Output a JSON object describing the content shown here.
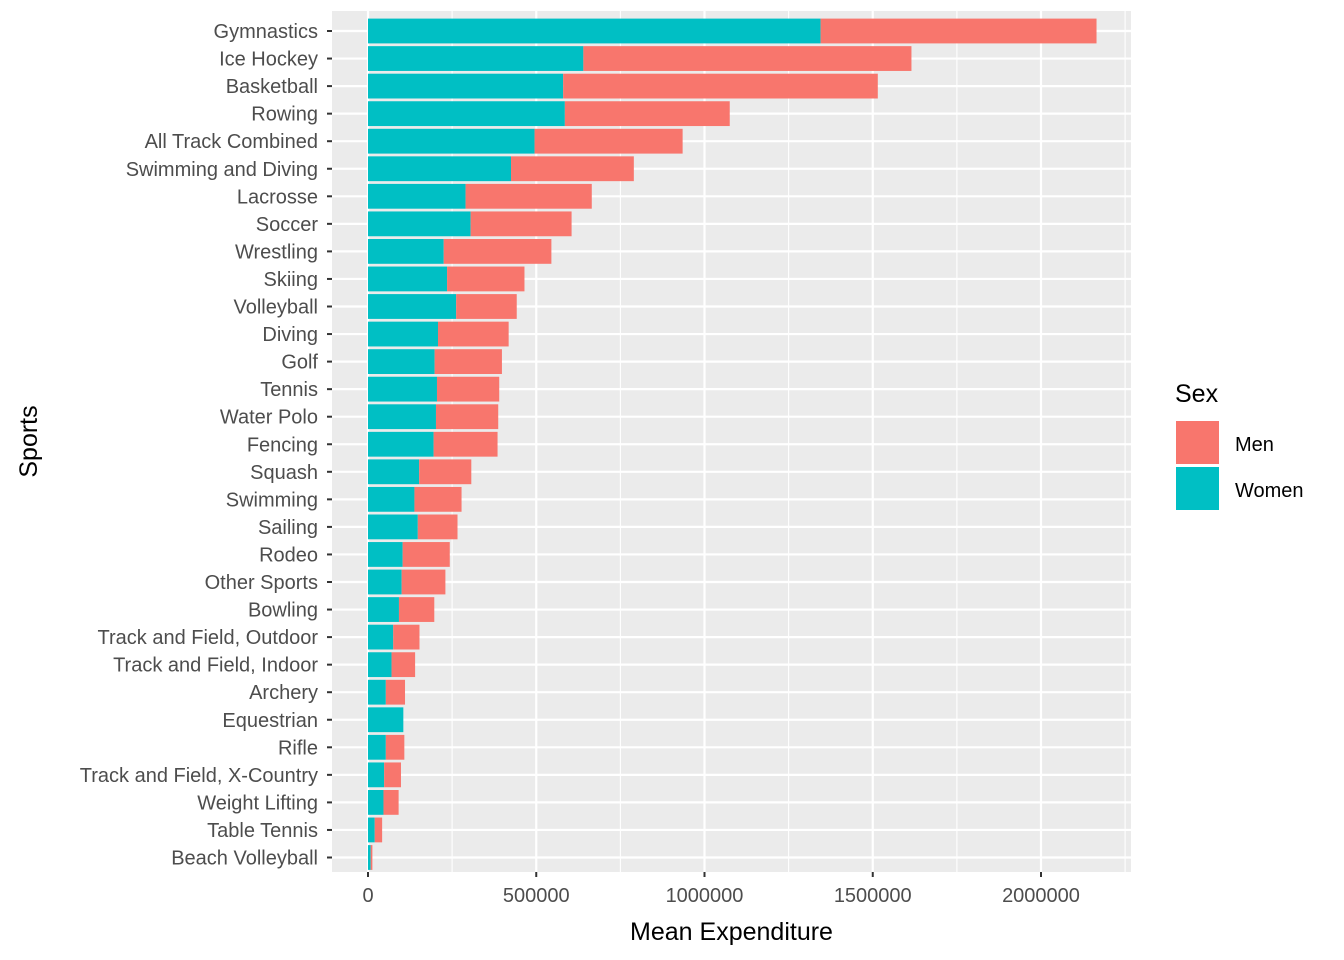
{
  "chart_data": {
    "type": "bar",
    "orientation": "horizontal",
    "stacked": true,
    "title": "",
    "xlabel": "Mean Expenditure",
    "ylabel": "Sports",
    "xlim": [
      0,
      2250000
    ],
    "x_ticks": [
      0,
      500000,
      1000000,
      1500000,
      2000000
    ],
    "x_tick_labels": [
      "0",
      "500000",
      "1000000",
      "1500000",
      "2000000"
    ],
    "grid": true,
    "legend": {
      "title": "Sex",
      "placement": "right"
    },
    "categories": [
      "Gymnastics",
      "Ice Hockey",
      "Basketball",
      "Rowing",
      "All Track Combined",
      "Swimming and Diving",
      "Lacrosse",
      "Soccer",
      "Wrestling",
      "Skiing",
      "Volleyball",
      "Diving",
      "Golf",
      "Tennis",
      "Water Polo",
      "Fencing",
      "Squash",
      "Swimming",
      "Sailing",
      "Rodeo",
      "Other Sports",
      "Bowling",
      "Track and Field, Outdoor",
      "Track and Field, Indoor",
      "Archery",
      "Equestrian",
      "Rifle",
      "Track and Field, X-Country",
      "Weight Lifting",
      "Table Tennis",
      "Beach Volleyball"
    ],
    "series": [
      {
        "name": "Men",
        "color": "#F8766D",
        "values": [
          820000,
          975000,
          935000,
          490000,
          440000,
          365000,
          375000,
          300000,
          320000,
          230000,
          180000,
          210000,
          200000,
          185000,
          185000,
          190000,
          155000,
          140000,
          118000,
          140000,
          130000,
          105000,
          78000,
          70000,
          57000,
          0,
          55000,
          50000,
          45000,
          22000,
          5000
        ]
      },
      {
        "name": "Women",
        "color": "#00BFC4",
        "values": [
          1345000,
          640000,
          580000,
          585000,
          495000,
          425000,
          290000,
          305000,
          225000,
          235000,
          262000,
          208000,
          198000,
          205000,
          202000,
          195000,
          152000,
          138000,
          148000,
          103000,
          100000,
          92000,
          75000,
          70000,
          53000,
          105000,
          53000,
          48000,
          46000,
          20000,
          8000
        ]
      }
    ]
  }
}
